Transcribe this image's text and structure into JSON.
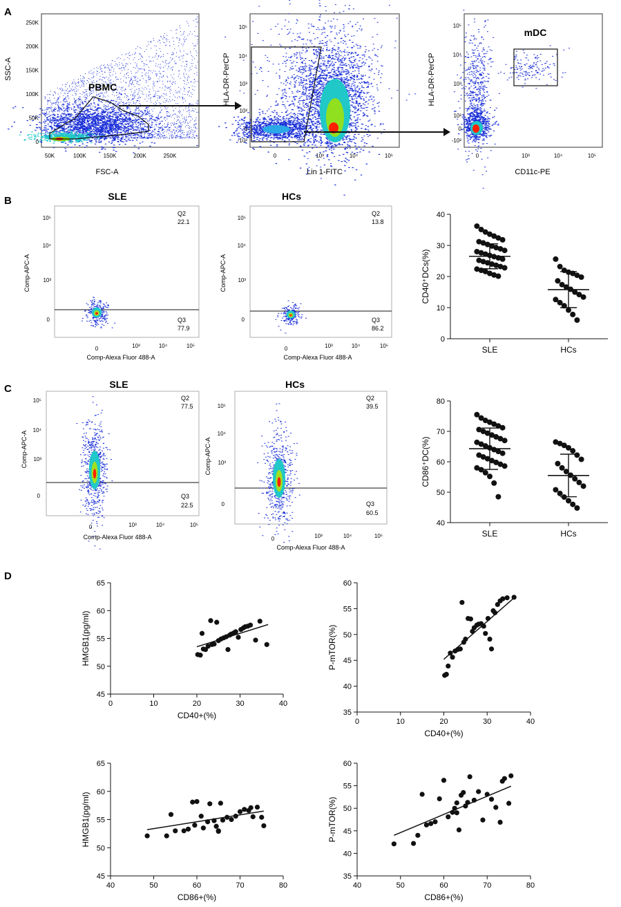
{
  "panel_labels": {
    "a": "A",
    "b": "B",
    "c": "C",
    "d": "D"
  },
  "colors": {
    "ink": "#111111",
    "density_low": "#1a2fd8",
    "density_mid": "#20c8c8",
    "density_high": "#ff2000"
  },
  "flow": {
    "a1": {
      "xlabel": "FSC-A",
      "ylabel": "SSC-A",
      "gate": "PBMC",
      "xticks": [
        "50K",
        "100K",
        "150K",
        "200K",
        "250K"
      ],
      "yticks": [
        "0",
        "50K",
        "100K",
        "150K",
        "200K",
        "250K"
      ]
    },
    "a2": {
      "xlabel": "Lin 1-FITC",
      "ylabel": "HLA-DR-PerCP"
    },
    "a3": {
      "xlabel": "CD11c-PE",
      "ylabel": "HLA-DR-PerCP",
      "gate": "mDC"
    },
    "b1": {
      "title": "SLE",
      "q2": "Q2",
      "q2_val": "22.1",
      "q3": "Q3",
      "q3_val": "77.9",
      "xlabel": "Comp-Alexa Fluor 488-A",
      "ylabel": "Comp-APC-A"
    },
    "b2": {
      "title": "HCs",
      "q2": "Q2",
      "q2_val": "13.8",
      "q3": "Q3",
      "q3_val": "86.2",
      "xlabel": "Comp-Alexa Fluor 488-A",
      "ylabel": "Comp-APC-A"
    },
    "c1": {
      "title": "SLE",
      "q2": "Q2",
      "q2_val": "77.5",
      "q3": "Q3",
      "q3_val": "22.5",
      "xlabel": "Comp-Alexa Fluor 488-A",
      "ylabel": "Comp-APC-A"
    },
    "c2": {
      "title": "HCs",
      "q2": "Q2",
      "q2_val": "39.5",
      "q3": "Q3",
      "q3_val": "60.5",
      "xlabel": "Comp-Alexa Fluor 488-A",
      "ylabel": "Comp-APC-A"
    },
    "log_ticks": [
      "-10²",
      "0",
      "10²",
      "10³",
      "10⁴",
      "10⁵"
    ]
  },
  "chart_data": [
    {
      "id": "cd40_dot",
      "type": "scatter",
      "title": "",
      "ylabel": "CD40⁺DCs(%)",
      "xlabel": "",
      "categories": [
        "SLE",
        "HCs"
      ],
      "ylim": [
        0,
        40
      ],
      "yticks": [
        0,
        10,
        20,
        30,
        40
      ],
      "series": [
        {
          "name": "SLE",
          "mean": 26.5,
          "sd": 4.0,
          "values": [
            36.2,
            35.1,
            34.3,
            33.6,
            33.0,
            32.4,
            31.8,
            31.2,
            30.8,
            30.3,
            29.8,
            29.3,
            28.9,
            28.4,
            28.0,
            27.6,
            27.2,
            26.8,
            26.4,
            26.0,
            25.6,
            25.2,
            24.8,
            24.4,
            24.0,
            23.6,
            23.2,
            22.8,
            22.4,
            22.0,
            21.6,
            21.0,
            20.5,
            20.1
          ]
        },
        {
          "name": "HCs",
          "mean": 15.8,
          "sd": 5.8,
          "values": [
            25.6,
            23.2,
            22.0,
            21.4,
            21.0,
            20.4,
            19.8,
            18.6,
            17.4,
            16.6,
            15.9,
            15.0,
            14.2,
            13.4,
            12.6,
            11.6,
            10.6,
            9.2,
            7.8,
            6.0
          ]
        }
      ]
    },
    {
      "id": "cd86_dot",
      "type": "scatter",
      "title": "",
      "ylabel": "CD86⁺DC(%)",
      "xlabel": "",
      "categories": [
        "SLE",
        "HCs"
      ],
      "ylim": [
        40,
        80
      ],
      "yticks": [
        40,
        50,
        60,
        70,
        80
      ],
      "series": [
        {
          "name": "SLE",
          "mean": 64.3,
          "sd": 6.8,
          "values": [
            75.5,
            74.4,
            73.6,
            73.0,
            72.4,
            71.8,
            71.2,
            70.6,
            70.0,
            69.4,
            68.8,
            68.2,
            67.6,
            67.0,
            66.4,
            65.8,
            65.2,
            64.6,
            64.0,
            63.4,
            62.8,
            62.2,
            61.6,
            61.0,
            60.4,
            59.8,
            59.2,
            58.6,
            58.0,
            57.4,
            56.4,
            55.2,
            53.0,
            48.5
          ]
        },
        {
          "name": "HCs",
          "mean": 55.5,
          "sd": 7.0,
          "values": [
            66.5,
            66.0,
            65.4,
            64.6,
            63.6,
            62.2,
            60.8,
            59.4,
            58.0,
            56.8,
            55.6,
            54.4,
            53.2,
            52.0,
            50.8,
            49.6,
            48.4,
            47.2,
            46.0,
            44.8
          ]
        }
      ]
    },
    {
      "id": "d1",
      "type": "scatter",
      "xlabel": "CD40+(%)",
      "ylabel": "HMGB1(pg/ml)",
      "xlim": [
        0,
        40
      ],
      "ylim": [
        45,
        65
      ],
      "xticks": [
        0,
        10,
        20,
        30,
        40
      ],
      "yticks": [
        45,
        50,
        55,
        60,
        65
      ],
      "x": [
        20.2,
        20.8,
        21.2,
        21.5,
        22.0,
        22.6,
        23.2,
        23.5,
        24.0,
        24.6,
        25.0,
        25.6,
        26.2,
        26.8,
        27.2,
        27.6,
        28.0,
        28.6,
        29.0,
        29.6,
        30.2,
        30.8,
        31.2,
        31.8,
        32.4,
        33.6,
        34.6,
        36.2
      ],
      "y": [
        52.1,
        52.0,
        55.9,
        53.1,
        53.0,
        53.6,
        58.2,
        53.9,
        54.0,
        57.9,
        54.6,
        54.9,
        55.1,
        55.3,
        53.0,
        55.6,
        55.8,
        56.0,
        56.2,
        55.2,
        56.6,
        56.9,
        57.1,
        57.2,
        57.4,
        54.7,
        58.1,
        53.9
      ],
      "trend": [
        [
          20,
          53.5
        ],
        [
          36.5,
          57.5
        ]
      ]
    },
    {
      "id": "d2",
      "type": "scatter",
      "xlabel": "CD40+(%)",
      "ylabel": "P-mTOR(%)",
      "xlim": [
        0,
        40
      ],
      "ylim": [
        35,
        60
      ],
      "xticks": [
        0,
        10,
        20,
        30,
        40
      ],
      "yticks": [
        35,
        40,
        45,
        50,
        55,
        60
      ],
      "x": [
        20.2,
        20.6,
        21.0,
        21.5,
        22.0,
        22.6,
        23.2,
        23.8,
        24.2,
        24.6,
        25.0,
        25.6,
        26.2,
        26.6,
        27.0,
        27.6,
        28.0,
        28.6,
        29.2,
        29.6,
        30.2,
        30.6,
        31.0,
        31.4,
        31.8,
        32.4,
        33.0,
        33.6,
        34.6,
        36.2
      ],
      "y": [
        42.1,
        42.3,
        43.9,
        46.4,
        45.6,
        46.8,
        47.1,
        47.2,
        56.2,
        48.5,
        49.1,
        53.1,
        53.0,
        50.6,
        51.3,
        51.8,
        52.0,
        52.1,
        51.6,
        50.2,
        53.1,
        49.1,
        47.2,
        54.6,
        54.2,
        55.8,
        56.5,
        56.9,
        57.1,
        57.2
      ],
      "trend": [
        [
          20,
          45.2
        ],
        [
          36.5,
          57.3
        ]
      ]
    },
    {
      "id": "d3",
      "type": "scatter",
      "xlabel": "CD86+(%)",
      "ylabel": "HMGB1(pg/ml)",
      "xlim": [
        40,
        80
      ],
      "ylim": [
        45,
        65
      ],
      "xticks": [
        40,
        50,
        60,
        70,
        80
      ],
      "yticks": [
        45,
        50,
        55,
        60,
        65
      ],
      "x": [
        48.5,
        53.0,
        54.0,
        55.0,
        57.0,
        58.0,
        59.5,
        60.0,
        61.0,
        61.5,
        62.5,
        63.0,
        64.0,
        64.5,
        65.0,
        65.5,
        66.0,
        67.0,
        68.0,
        69.0,
        70.0,
        71.0,
        72.0,
        72.5,
        73.0,
        74.0,
        75.0,
        75.5,
        59.0,
        65.0
      ],
      "y": [
        52.1,
        52.1,
        55.9,
        53.0,
        53.0,
        53.3,
        54.0,
        58.2,
        55.6,
        53.5,
        54.6,
        57.8,
        54.8,
        53.8,
        52.9,
        57.9,
        54.9,
        55.4,
        55.0,
        55.6,
        56.4,
        56.8,
        56.6,
        57.1,
        55.5,
        57.2,
        55.4,
        53.9,
        58.1,
        53.0
      ],
      "trend": [
        [
          48.5,
          53.2
        ],
        [
          75.5,
          56.5
        ]
      ]
    },
    {
      "id": "d4",
      "type": "scatter",
      "xlabel": "CD86+(%)",
      "ylabel": "P-mTOR(%)",
      "xlim": [
        40,
        80
      ],
      "ylim": [
        35,
        60
      ],
      "xticks": [
        40,
        50,
        60,
        70,
        80
      ],
      "yticks": [
        35,
        40,
        45,
        50,
        55,
        60
      ],
      "x": [
        48.5,
        53.0,
        54.0,
        55.0,
        56.0,
        57.0,
        58.0,
        59.0,
        60.0,
        61.0,
        62.0,
        62.5,
        63.0,
        63.5,
        64.0,
        64.5,
        65.0,
        65.5,
        66.0,
        67.0,
        68.0,
        69.0,
        70.0,
        71.0,
        72.0,
        73.0,
        73.5,
        74.0,
        75.0,
        75.5,
        63.0
      ],
      "y": [
        42.1,
        42.2,
        44.0,
        53.1,
        46.3,
        46.6,
        47.0,
        52.1,
        56.2,
        48.1,
        49.1,
        50.0,
        51.2,
        45.2,
        52.9,
        53.5,
        50.5,
        51.3,
        57.0,
        51.8,
        53.7,
        47.4,
        53.1,
        52.0,
        50.2,
        46.9,
        56.0,
        56.6,
        51.1,
        57.2,
        49.0
      ],
      "trend": [
        [
          48.5,
          44.0
        ],
        [
          75.5,
          54.9
        ]
      ]
    }
  ]
}
